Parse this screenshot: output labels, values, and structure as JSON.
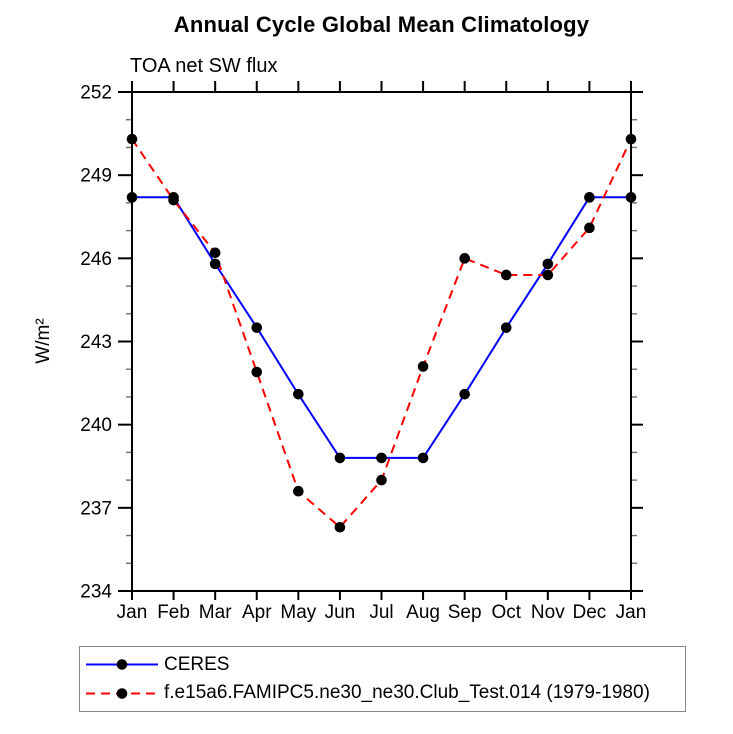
{
  "title": "Annual Cycle Global Mean Climatology",
  "subtitle": "TOA net SW flux",
  "ylabel": "W/m²",
  "colors": {
    "ceres_line": "#0000ff",
    "model_line": "#ff0000",
    "marker": "#000000",
    "axis": "#000000",
    "legend_border": "#878787"
  },
  "chart_data": {
    "type": "line",
    "title": "Annual Cycle Global Mean Climatology",
    "subtitle": "TOA net SW flux",
    "xlabel": "",
    "ylabel": "W/m²",
    "x_categories": [
      "Jan",
      "Feb",
      "Mar",
      "Apr",
      "May",
      "Jun",
      "Jul",
      "Aug",
      "Sep",
      "Oct",
      "Nov",
      "Dec",
      "Jan"
    ],
    "ylim": [
      234,
      252
    ],
    "ytick_major_step": 3,
    "ytick_minor_step": 1,
    "grid": false,
    "legend_position": "bottom-left",
    "series": [
      {
        "name": "CERES",
        "color": "#0000ff",
        "line_style": "solid",
        "marker": "circle",
        "marker_color": "#000000",
        "values": [
          248.2,
          248.2,
          245.8,
          243.5,
          241.1,
          238.8,
          238.8,
          238.8,
          241.1,
          243.5,
          245.8,
          248.2,
          248.2
        ]
      },
      {
        "name": "f.e15a6.FAMIPC5.ne30_ne30.Club_Test.014 (1979-1980)",
        "color": "#ff0000",
        "line_style": "dashed",
        "marker": "circle",
        "marker_color": "#000000",
        "values": [
          250.3,
          248.1,
          246.2,
          241.9,
          237.6,
          236.3,
          238.0,
          242.1,
          246.0,
          245.4,
          245.4,
          247.1,
          250.3
        ]
      }
    ]
  }
}
